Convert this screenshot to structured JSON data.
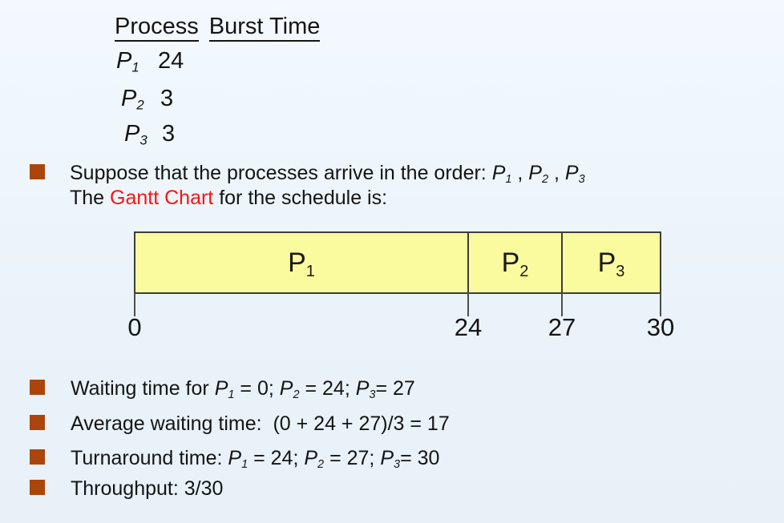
{
  "colors": {
    "background": "#eaf3f9",
    "bullet_square": "#ab450c",
    "highlight_red": "#fa1414",
    "gantt_fill": "#fafa9e",
    "gantt_border": "#3d3d3d",
    "text": "#141414"
  },
  "process_table": {
    "header_process": "Process",
    "header_burst": "Burst Time",
    "rows": [
      {
        "name": "P",
        "sub": "1",
        "burst": "24"
      },
      {
        "name": "P",
        "sub": "2",
        "burst": "3"
      },
      {
        "name": "P",
        "sub": "3",
        "burst": "3"
      }
    ]
  },
  "intro": {
    "line1_prefix": "Suppose that the processes arrive in the order: ",
    "p1": "P",
    "p1_sub": "1",
    "sep1": " , ",
    "p2": "P",
    "p2_sub": "2",
    "sep2": " , ",
    "p3": "P",
    "p3_sub": "3",
    "line2_before": "The ",
    "line2_highlight": "Gantt Chart",
    "line2_after": " for the schedule is:"
  },
  "gantt": {
    "segments": [
      {
        "label": "P",
        "sub": "1"
      },
      {
        "label": "P",
        "sub": "2"
      },
      {
        "label": "P",
        "sub": "3"
      }
    ],
    "ticks": [
      "0",
      "24",
      "27",
      "30"
    ]
  },
  "bullets": {
    "waiting": {
      "prefix": "Waiting time for ",
      "p1": "P",
      "s1": "1",
      "mid1": " = 0; ",
      "p2": "P",
      "s2": "2",
      "mid2": " = 24; ",
      "p3": "P",
      "s3": "3",
      "tail": "= 27"
    },
    "average": "Average waiting time:  (0 + 24 + 27)/3 = 17",
    "turnaround": {
      "prefix": "Turnaround time: ",
      "p1": "P",
      "s1": "1",
      "mid1": " = 24; ",
      "p2": "P",
      "s2": "2",
      "mid2": " = 27; ",
      "p3": "P",
      "s3": "3",
      "tail": "= 30"
    },
    "throughput": "Throughput: 3/30"
  },
  "chart_data": {
    "type": "gantt",
    "processes": [
      {
        "name": "P1",
        "burst_time": 24
      },
      {
        "name": "P2",
        "burst_time": 3
      },
      {
        "name": "P3",
        "burst_time": 3
      }
    ],
    "arrival_order": [
      "P1",
      "P2",
      "P3"
    ],
    "segments": [
      {
        "label": "P1",
        "start": 0,
        "end": 24
      },
      {
        "label": "P2",
        "start": 24,
        "end": 27
      },
      {
        "label": "P3",
        "start": 27,
        "end": 30
      }
    ],
    "axis_ticks": [
      0,
      24,
      27,
      30
    ],
    "waiting_times": {
      "P1": 0,
      "P2": 24,
      "P3": 27
    },
    "average_waiting_time": 17,
    "turnaround_times": {
      "P1": 24,
      "P2": 27,
      "P3": 30
    },
    "throughput": "3/30"
  }
}
